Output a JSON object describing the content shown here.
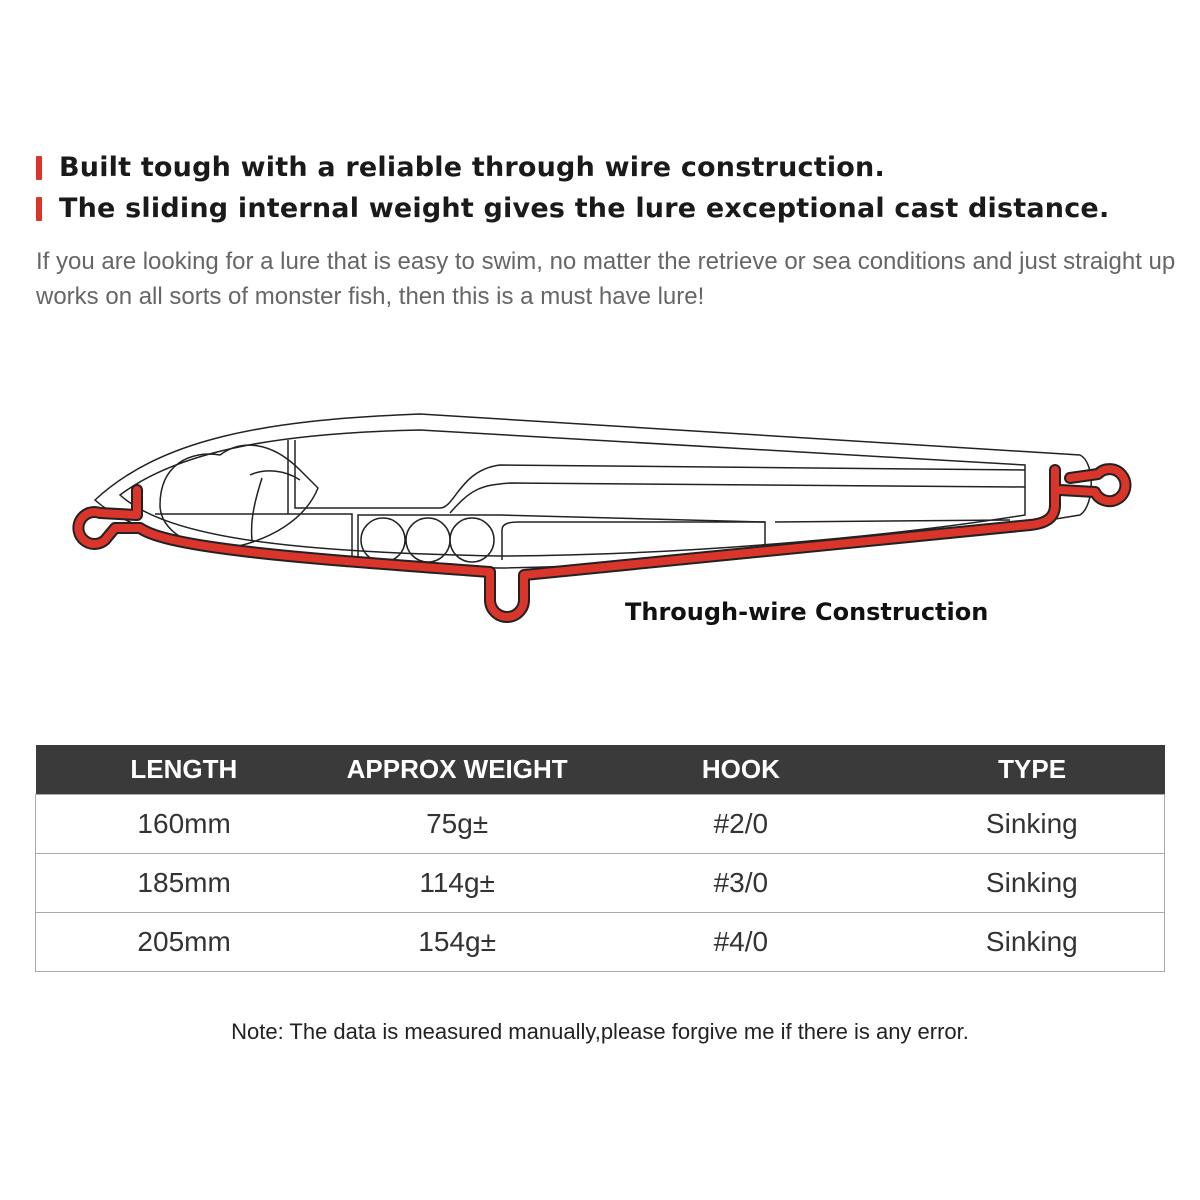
{
  "features": [
    "Built tough with a reliable through wire construction.",
    "The sliding internal weight gives the lure exceptional cast distance."
  ],
  "description": "If you are looking for a lure that is easy to swim, no matter the retrieve or sea conditions and just straight up works on all sorts of monster fish, then this is a must have lure!",
  "diagram": {
    "caption": "Through-wire Construction",
    "wire_color": "#d9352a"
  },
  "specs": {
    "headers": [
      "LENGTH",
      "APPROX WEIGHT",
      "HOOK",
      "TYPE"
    ],
    "rows": [
      [
        "160mm",
        "75g±",
        "#2/0",
        "Sinking"
      ],
      [
        "185mm",
        "114g±",
        "#3/0",
        "Sinking"
      ],
      [
        "205mm",
        "154g±",
        "#4/0",
        "Sinking"
      ]
    ]
  },
  "note": "Note: The data is measured manually,please forgive me if there is any error.",
  "colors": {
    "accent": "#d9352a",
    "header_bg": "#3a3a3a"
  }
}
